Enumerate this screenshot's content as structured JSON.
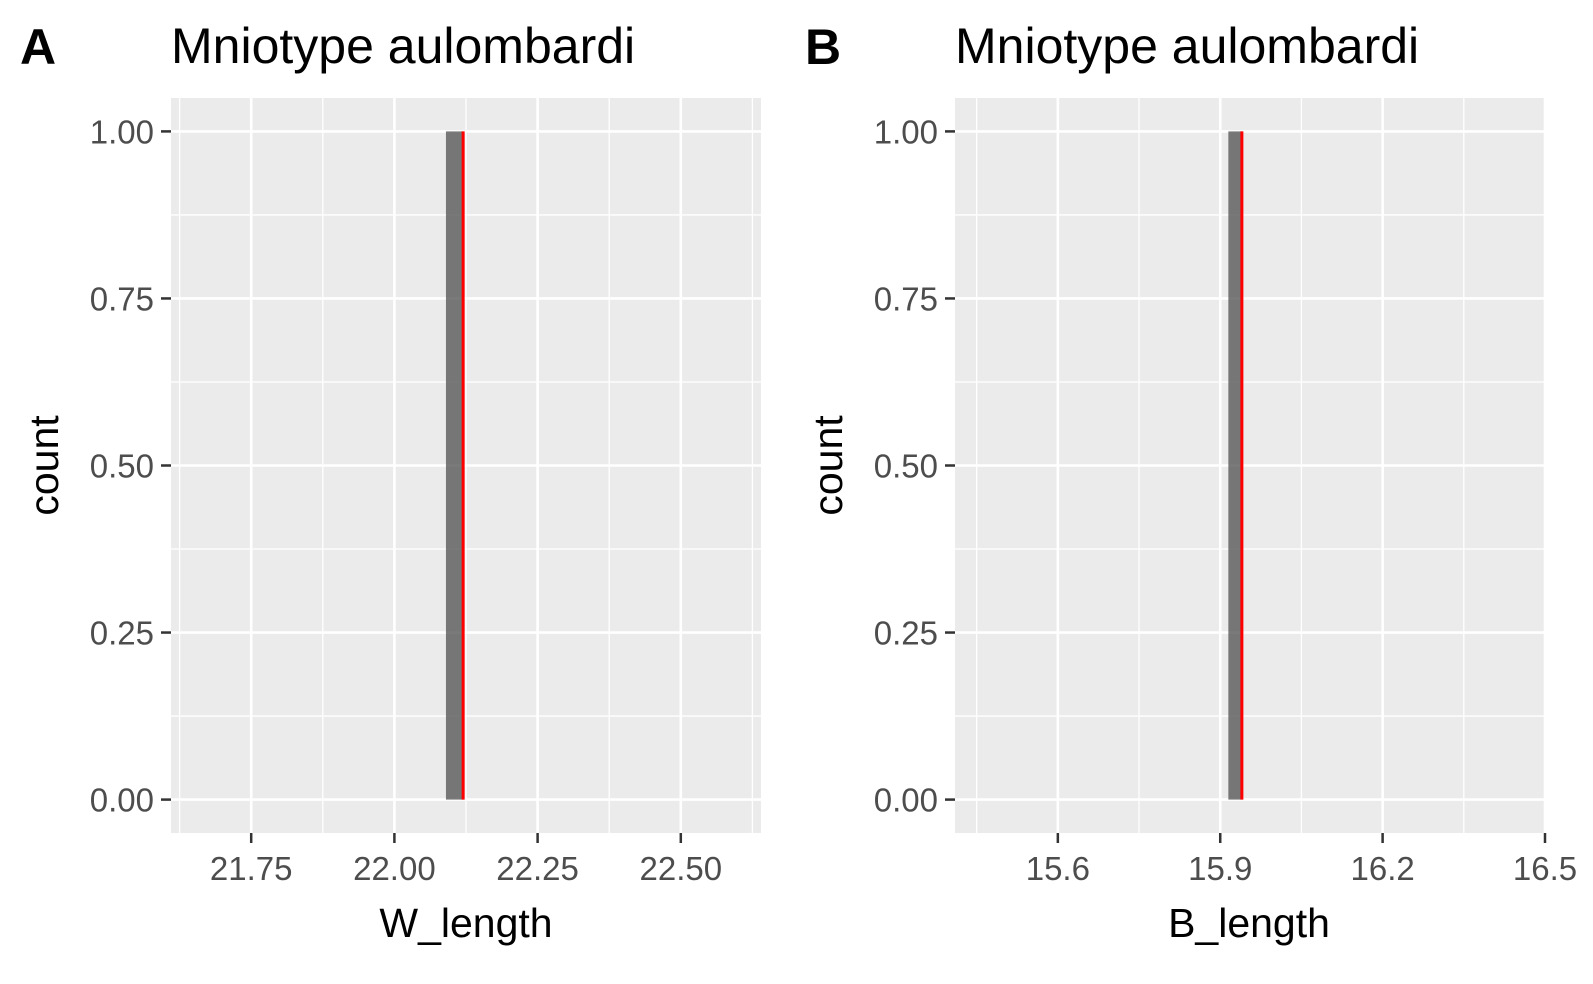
{
  "chart_data": [
    {
      "type": "bar",
      "panel_tag": "A",
      "title": "Mniotype aulombardi",
      "xlabel": "W_length",
      "ylabel": "count",
      "xlim": [
        21.61,
        22.64
      ],
      "ylim": [
        -0.05,
        1.05
      ],
      "x_ticks": [
        21.75,
        22.0,
        22.25,
        22.5
      ],
      "x_tick_labels": [
        "21.75",
        "22.00",
        "22.25",
        "22.50"
      ],
      "y_ticks": [
        0,
        0.25,
        0.5,
        0.75,
        1.0
      ],
      "y_tick_labels": [
        "0.00",
        "0.25",
        "0.50",
        "0.75",
        "1.00"
      ],
      "bars": [
        {
          "xmin": 22.09,
          "xmax": 22.12,
          "count": 1
        }
      ],
      "vline": {
        "x": 22.12,
        "color": "#ff0000"
      },
      "grid": true
    },
    {
      "type": "bar",
      "panel_tag": "B",
      "title": "Mniotype aulombardi",
      "xlabel": "B_length",
      "ylabel": "count",
      "xlim": [
        15.41,
        16.5
      ],
      "ylim": [
        -0.05,
        1.05
      ],
      "x_ticks": [
        15.6,
        15.9,
        16.2,
        16.5
      ],
      "x_tick_labels": [
        "15.6",
        "15.9",
        "16.2",
        "16.5"
      ],
      "y_ticks": [
        0,
        0.25,
        0.5,
        0.75,
        1.0
      ],
      "y_tick_labels": [
        "0.00",
        "0.25",
        "0.50",
        "0.75",
        "1.00"
      ],
      "bars": [
        {
          "xmin": 15.915,
          "xmax": 15.94,
          "count": 1
        }
      ],
      "vline": {
        "x": 15.94,
        "color": "#ff0000"
      },
      "grid": true
    }
  ],
  "colors": {
    "panel_background": "#ebebeb",
    "grid": "#ffffff",
    "bar_fill": "#595959",
    "vline": "#ff0000",
    "tick_text": "#4d4d4d",
    "tick_mark": "#333333"
  }
}
